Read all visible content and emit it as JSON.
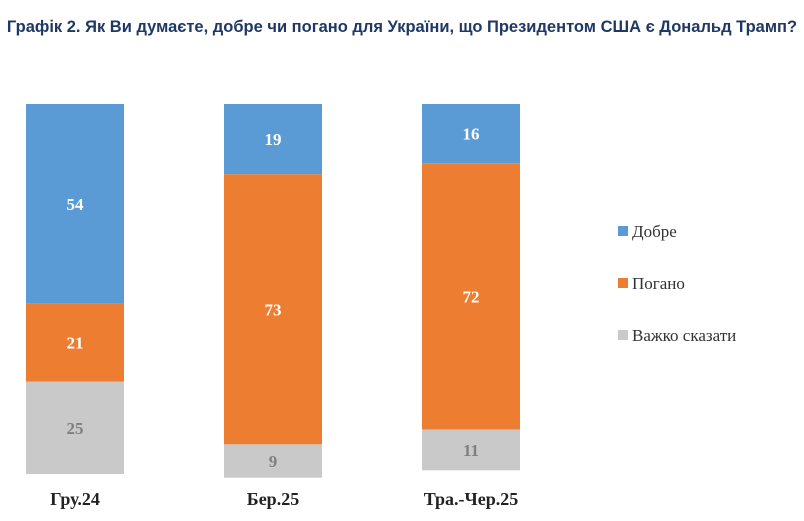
{
  "title": "Графік 2. Як Ви думаєте, добре чи погано для України, що Президентом США є Дональд Трамп?",
  "chart_data": {
    "type": "bar",
    "stacked": true,
    "categories": [
      "Гру.24",
      "Бер.25",
      "Тра.-Чер.25"
    ],
    "series": [
      {
        "name": "Добре",
        "color": "#5b9bd5",
        "label_color": "#ffffff",
        "values": [
          54,
          19,
          16
        ]
      },
      {
        "name": "Погано",
        "color": "#ed7d31",
        "label_color": "#ffffff",
        "values": [
          21,
          73,
          72
        ]
      },
      {
        "name": "Важко сказати",
        "color": "#c9c9c9",
        "label_color": "#7f7f7f",
        "values": [
          25,
          9,
          11
        ]
      }
    ],
    "ylim": [
      0,
      100
    ],
    "grid": false,
    "legend_position": "right"
  }
}
